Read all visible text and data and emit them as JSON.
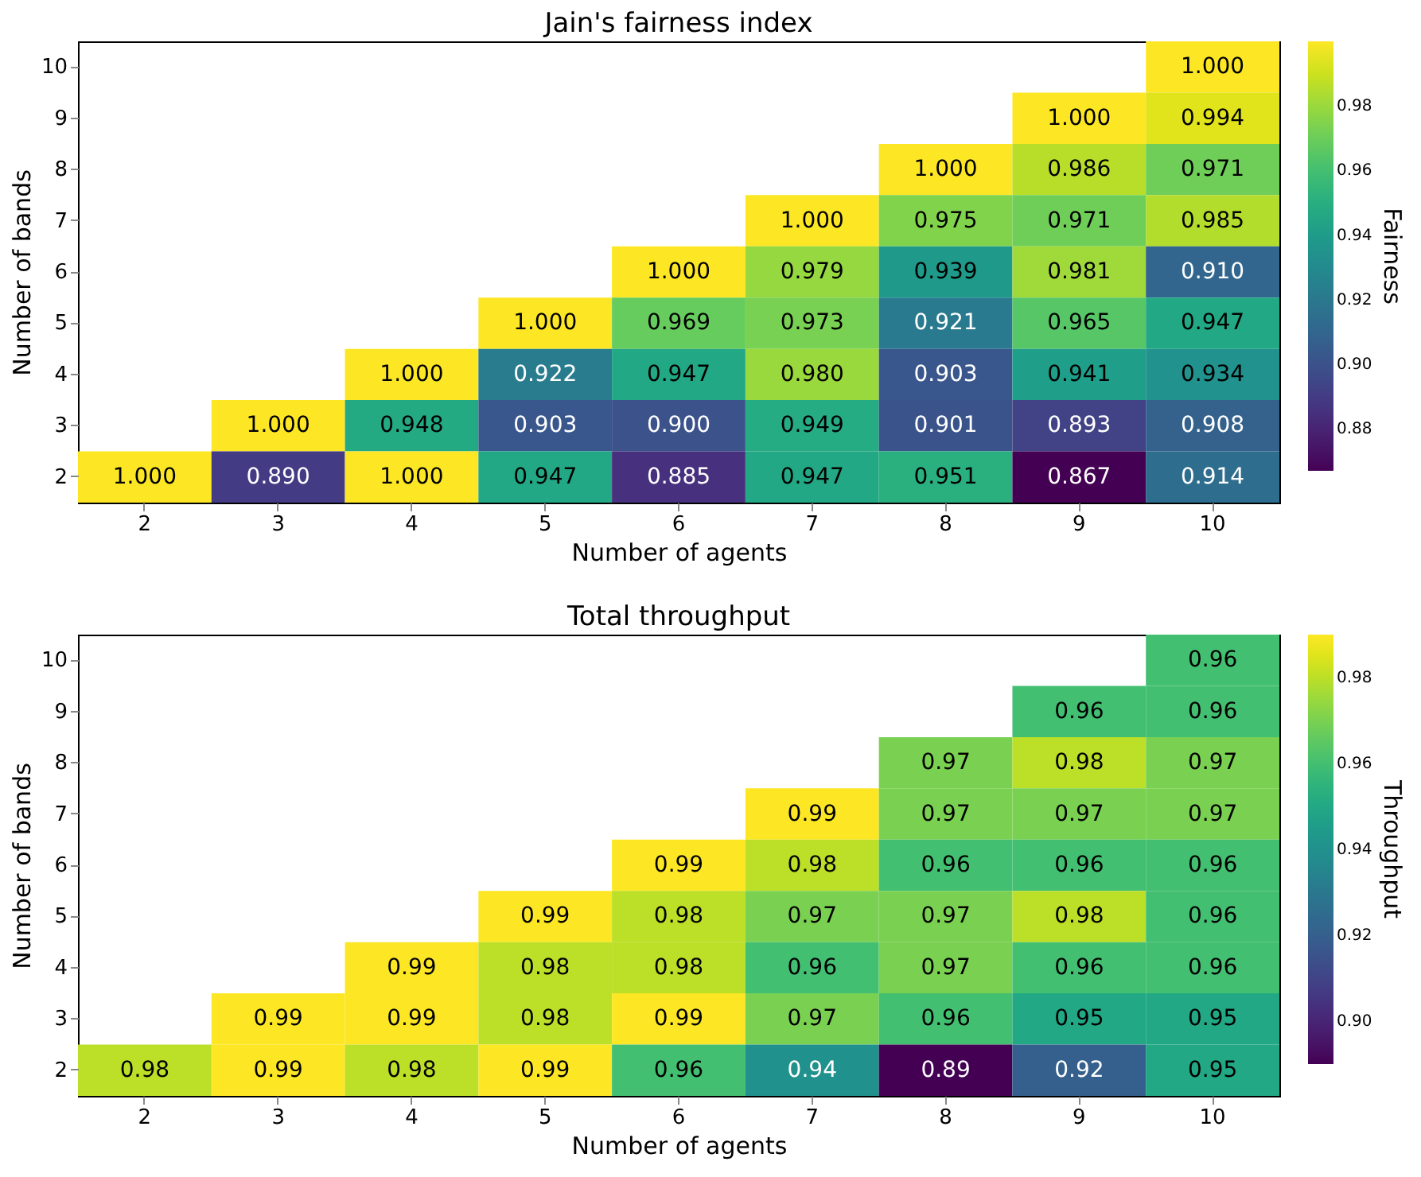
{
  "chart_data": [
    {
      "type": "heatmap",
      "title": "Jain's fairness index",
      "xlabel": "Number of agents",
      "ylabel": "Number of bands",
      "clabel": "Fairness",
      "categories": [
        "2",
        "3",
        "4",
        "5",
        "6",
        "7",
        "8",
        "9",
        "10"
      ],
      "y_categories": [
        "10",
        "9",
        "8",
        "7",
        "6",
        "5",
        "4",
        "3",
        "2"
      ],
      "cells": [
        [
          null,
          null,
          null,
          null,
          null,
          null,
          null,
          null,
          1.0
        ],
        [
          null,
          null,
          null,
          null,
          null,
          null,
          null,
          1.0,
          0.994
        ],
        [
          null,
          null,
          null,
          null,
          null,
          null,
          1.0,
          0.986,
          0.971
        ],
        [
          null,
          null,
          null,
          null,
          null,
          1.0,
          0.975,
          0.971,
          0.985
        ],
        [
          null,
          null,
          null,
          null,
          1.0,
          0.979,
          0.939,
          0.981,
          0.91
        ],
        [
          null,
          null,
          null,
          1.0,
          0.969,
          0.973,
          0.921,
          0.965,
          0.947
        ],
        [
          null,
          null,
          1.0,
          0.922,
          0.947,
          0.98,
          0.903,
          0.941,
          0.934
        ],
        [
          null,
          1.0,
          0.948,
          0.903,
          0.9,
          0.949,
          0.901,
          0.893,
          0.908
        ],
        [
          1.0,
          0.89,
          1.0,
          0.947,
          0.885,
          0.947,
          0.951,
          0.867,
          0.914
        ]
      ],
      "cell_labels": [
        [
          null,
          null,
          null,
          null,
          null,
          null,
          null,
          null,
          "1.000"
        ],
        [
          null,
          null,
          null,
          null,
          null,
          null,
          null,
          "1.000",
          "0.994"
        ],
        [
          null,
          null,
          null,
          null,
          null,
          null,
          "1.000",
          "0.986",
          "0.971"
        ],
        [
          null,
          null,
          null,
          null,
          null,
          "1.000",
          "0.975",
          "0.971",
          "0.985"
        ],
        [
          null,
          null,
          null,
          null,
          "1.000",
          "0.979",
          "0.939",
          "0.981",
          "0.910"
        ],
        [
          null,
          null,
          null,
          "1.000",
          "0.969",
          "0.973",
          "0.921",
          "0.965",
          "0.947"
        ],
        [
          null,
          null,
          "1.000",
          "0.922",
          "0.947",
          "0.980",
          "0.903",
          "0.941",
          "0.934"
        ],
        [
          null,
          "1.000",
          "0.948",
          "0.903",
          "0.900",
          "0.949",
          "0.901",
          "0.893",
          "0.908"
        ],
        [
          "1.000",
          "0.890",
          "1.000",
          "0.947",
          "0.885",
          "0.947",
          "0.951",
          "0.867",
          "0.914"
        ]
      ],
      "clim": [
        0.867,
        1.0
      ],
      "cticks": [
        0.88,
        {
          "value": 0.9,
          "label": "0.90"
        },
        0.92,
        0.94,
        0.96,
        0.98
      ],
      "grid": false
    },
    {
      "type": "heatmap",
      "title": "Total throughput",
      "xlabel": "Number of agents",
      "ylabel": "Number of bands",
      "clabel": "Throughput",
      "categories": [
        "2",
        "3",
        "4",
        "5",
        "6",
        "7",
        "8",
        "9",
        "10"
      ],
      "y_categories": [
        "10",
        "9",
        "8",
        "7",
        "6",
        "5",
        "4",
        "3",
        "2"
      ],
      "cells": [
        [
          null,
          null,
          null,
          null,
          null,
          null,
          null,
          null,
          0.96
        ],
        [
          null,
          null,
          null,
          null,
          null,
          null,
          null,
          0.96,
          0.96
        ],
        [
          null,
          null,
          null,
          null,
          null,
          null,
          0.97,
          0.98,
          0.97
        ],
        [
          null,
          null,
          null,
          null,
          null,
          0.99,
          0.97,
          0.97,
          0.97
        ],
        [
          null,
          null,
          null,
          null,
          0.99,
          0.98,
          0.96,
          0.96,
          0.96
        ],
        [
          null,
          null,
          null,
          0.99,
          0.98,
          0.97,
          0.97,
          0.98,
          0.96
        ],
        [
          null,
          null,
          0.99,
          0.98,
          0.98,
          0.96,
          0.97,
          0.96,
          0.96
        ],
        [
          null,
          0.99,
          0.99,
          0.98,
          0.99,
          0.97,
          0.96,
          0.95,
          0.95
        ],
        [
          0.98,
          0.99,
          0.98,
          0.99,
          0.96,
          0.94,
          0.89,
          0.92,
          0.95
        ]
      ],
      "clim": [
        0.89,
        0.99
      ],
      "cticks": [
        {
          "value": 0.9,
          "label": "0.90"
        },
        0.92,
        0.94,
        0.96,
        0.98
      ],
      "data_labels": true,
      "grid": false
    }
  ]
}
